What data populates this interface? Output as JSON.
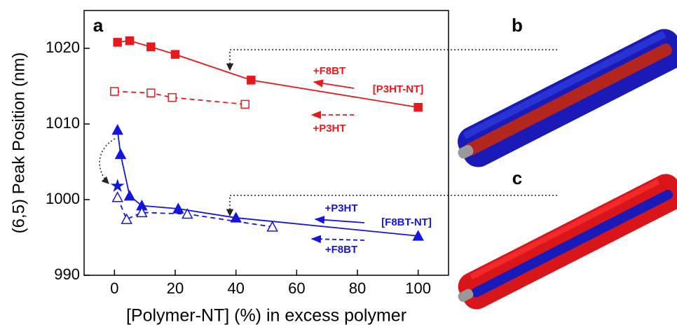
{
  "chart_data": {
    "type": "scatter",
    "xlabel": "[Polymer-NT] (%) in excess polymer",
    "ylabel": "(6,5) Peak Position (nm)",
    "xlim": [
      -10,
      110
    ],
    "xticks": [
      0,
      20,
      40,
      60,
      80,
      100
    ],
    "ylim": [
      990,
      1025
    ],
    "yticks": [
      990,
      1000,
      1010,
      1020
    ],
    "series": [
      {
        "color": "#e8191c",
        "marker": "square",
        "filled": true,
        "line": "solid",
        "x": [
          1,
          5,
          12,
          20,
          45,
          100
        ],
        "values": [
          1020.8,
          1021,
          1020.2,
          1019.2,
          1015.8,
          1012.2
        ]
      },
      {
        "color": "#e8191c",
        "marker": "square",
        "filled": false,
        "line": "dashed",
        "x": [
          0,
          12,
          19,
          43
        ],
        "values": [
          1014.3,
          1014.1,
          1013.5,
          1012.6
        ]
      },
      {
        "color": "#1515e0",
        "marker": "triangle",
        "filled": true,
        "line": "solid",
        "x": [
          1,
          2,
          5,
          9,
          21,
          40,
          100
        ],
        "values": [
          1009.2,
          1006,
          1000.5,
          999.2,
          998.8,
          997.6,
          995.2
        ]
      },
      {
        "color": "#1515e0",
        "marker": "triangle",
        "filled": false,
        "line": "dashed",
        "x": [
          1,
          4,
          9,
          24,
          52
        ],
        "values": [
          1000.3,
          997.4,
          998.3,
          998.1,
          996.4
        ]
      },
      {
        "color": "#1515e0",
        "marker": "star",
        "filled": true,
        "line": "none",
        "x": [
          1
        ],
        "values": [
          1001.8
        ]
      }
    ],
    "annotations": [
      "a",
      "b",
      "c",
      "+F8BT",
      "[P3HT-NT]",
      "+P3HT",
      "+P3HT",
      "[F8BT-NT]",
      "+F8BT"
    ]
  }
}
